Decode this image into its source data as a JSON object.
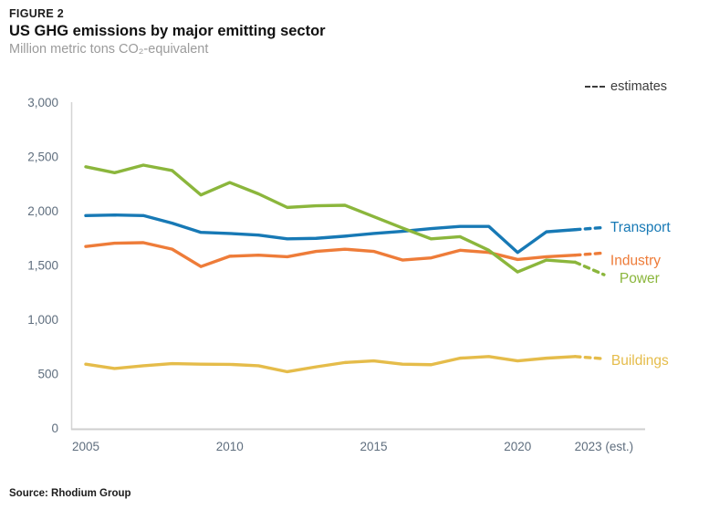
{
  "figure_label": "FIGURE 2",
  "title": "US GHG emissions by major emitting sector",
  "subtitle": "Million metric tons CO₂-equivalent",
  "legend": {
    "estimates_label": "estimates"
  },
  "source": "Source: Rhodium Group",
  "colors": {
    "transport": "#1779b5",
    "industry": "#ee7c39",
    "power": "#8bb63c",
    "buildings": "#e5bc4a",
    "axis_line": "#d4d4d4",
    "tick_text": "#5f6e7e",
    "estimates_text": "#3c3c3c"
  },
  "chart_data": {
    "type": "line",
    "title": "US GHG emissions by major emitting sector",
    "ylabel": "Million metric tons CO2-equivalent",
    "xlabel": "",
    "ylim": [
      0,
      3000
    ],
    "grid": false,
    "x": [
      2005,
      2006,
      2007,
      2008,
      2009,
      2010,
      2011,
      2012,
      2013,
      2014,
      2015,
      2016,
      2017,
      2018,
      2019,
      2020,
      2021,
      2022,
      2023
    ],
    "x_tick_positions": [
      2005,
      2010,
      2015,
      2020,
      2023
    ],
    "x_tick_labels": [
      "2005",
      "2010",
      "2015",
      "2020",
      "2023 (est.)"
    ],
    "y_ticks": [
      0,
      500,
      1000,
      1500,
      2000,
      2500,
      3000
    ],
    "y_tick_labels": [
      "0",
      "500",
      "1,000",
      "1,500",
      "2,000",
      "2,500",
      "3,000"
    ],
    "estimate_from_year": 2022,
    "legend_note": "--- estimates (dashed segment 2022-2023)",
    "series": [
      {
        "name": "Transport",
        "color": "#1779b5",
        "values": [
          1960,
          1965,
          1960,
          1890,
          1805,
          1795,
          1780,
          1745,
          1750,
          1770,
          1795,
          1815,
          1840,
          1860,
          1860,
          1620,
          1810,
          1830,
          1850
        ]
      },
      {
        "name": "Industry",
        "color": "#ee7c39",
        "values": [
          1675,
          1705,
          1710,
          1650,
          1490,
          1585,
          1595,
          1580,
          1630,
          1650,
          1630,
          1550,
          1570,
          1640,
          1620,
          1555,
          1580,
          1595,
          1615
        ]
      },
      {
        "name": "Power",
        "color": "#8bb63c",
        "values": [
          2410,
          2355,
          2425,
          2375,
          2150,
          2265,
          2160,
          2035,
          2050,
          2055,
          1950,
          1845,
          1745,
          1765,
          1640,
          1440,
          1550,
          1530,
          1415
        ]
      },
      {
        "name": "Buildings",
        "color": "#e5bc4a",
        "values": [
          590,
          550,
          575,
          595,
          590,
          588,
          575,
          520,
          565,
          605,
          620,
          590,
          585,
          645,
          660,
          620,
          645,
          660,
          640
        ]
      }
    ]
  }
}
